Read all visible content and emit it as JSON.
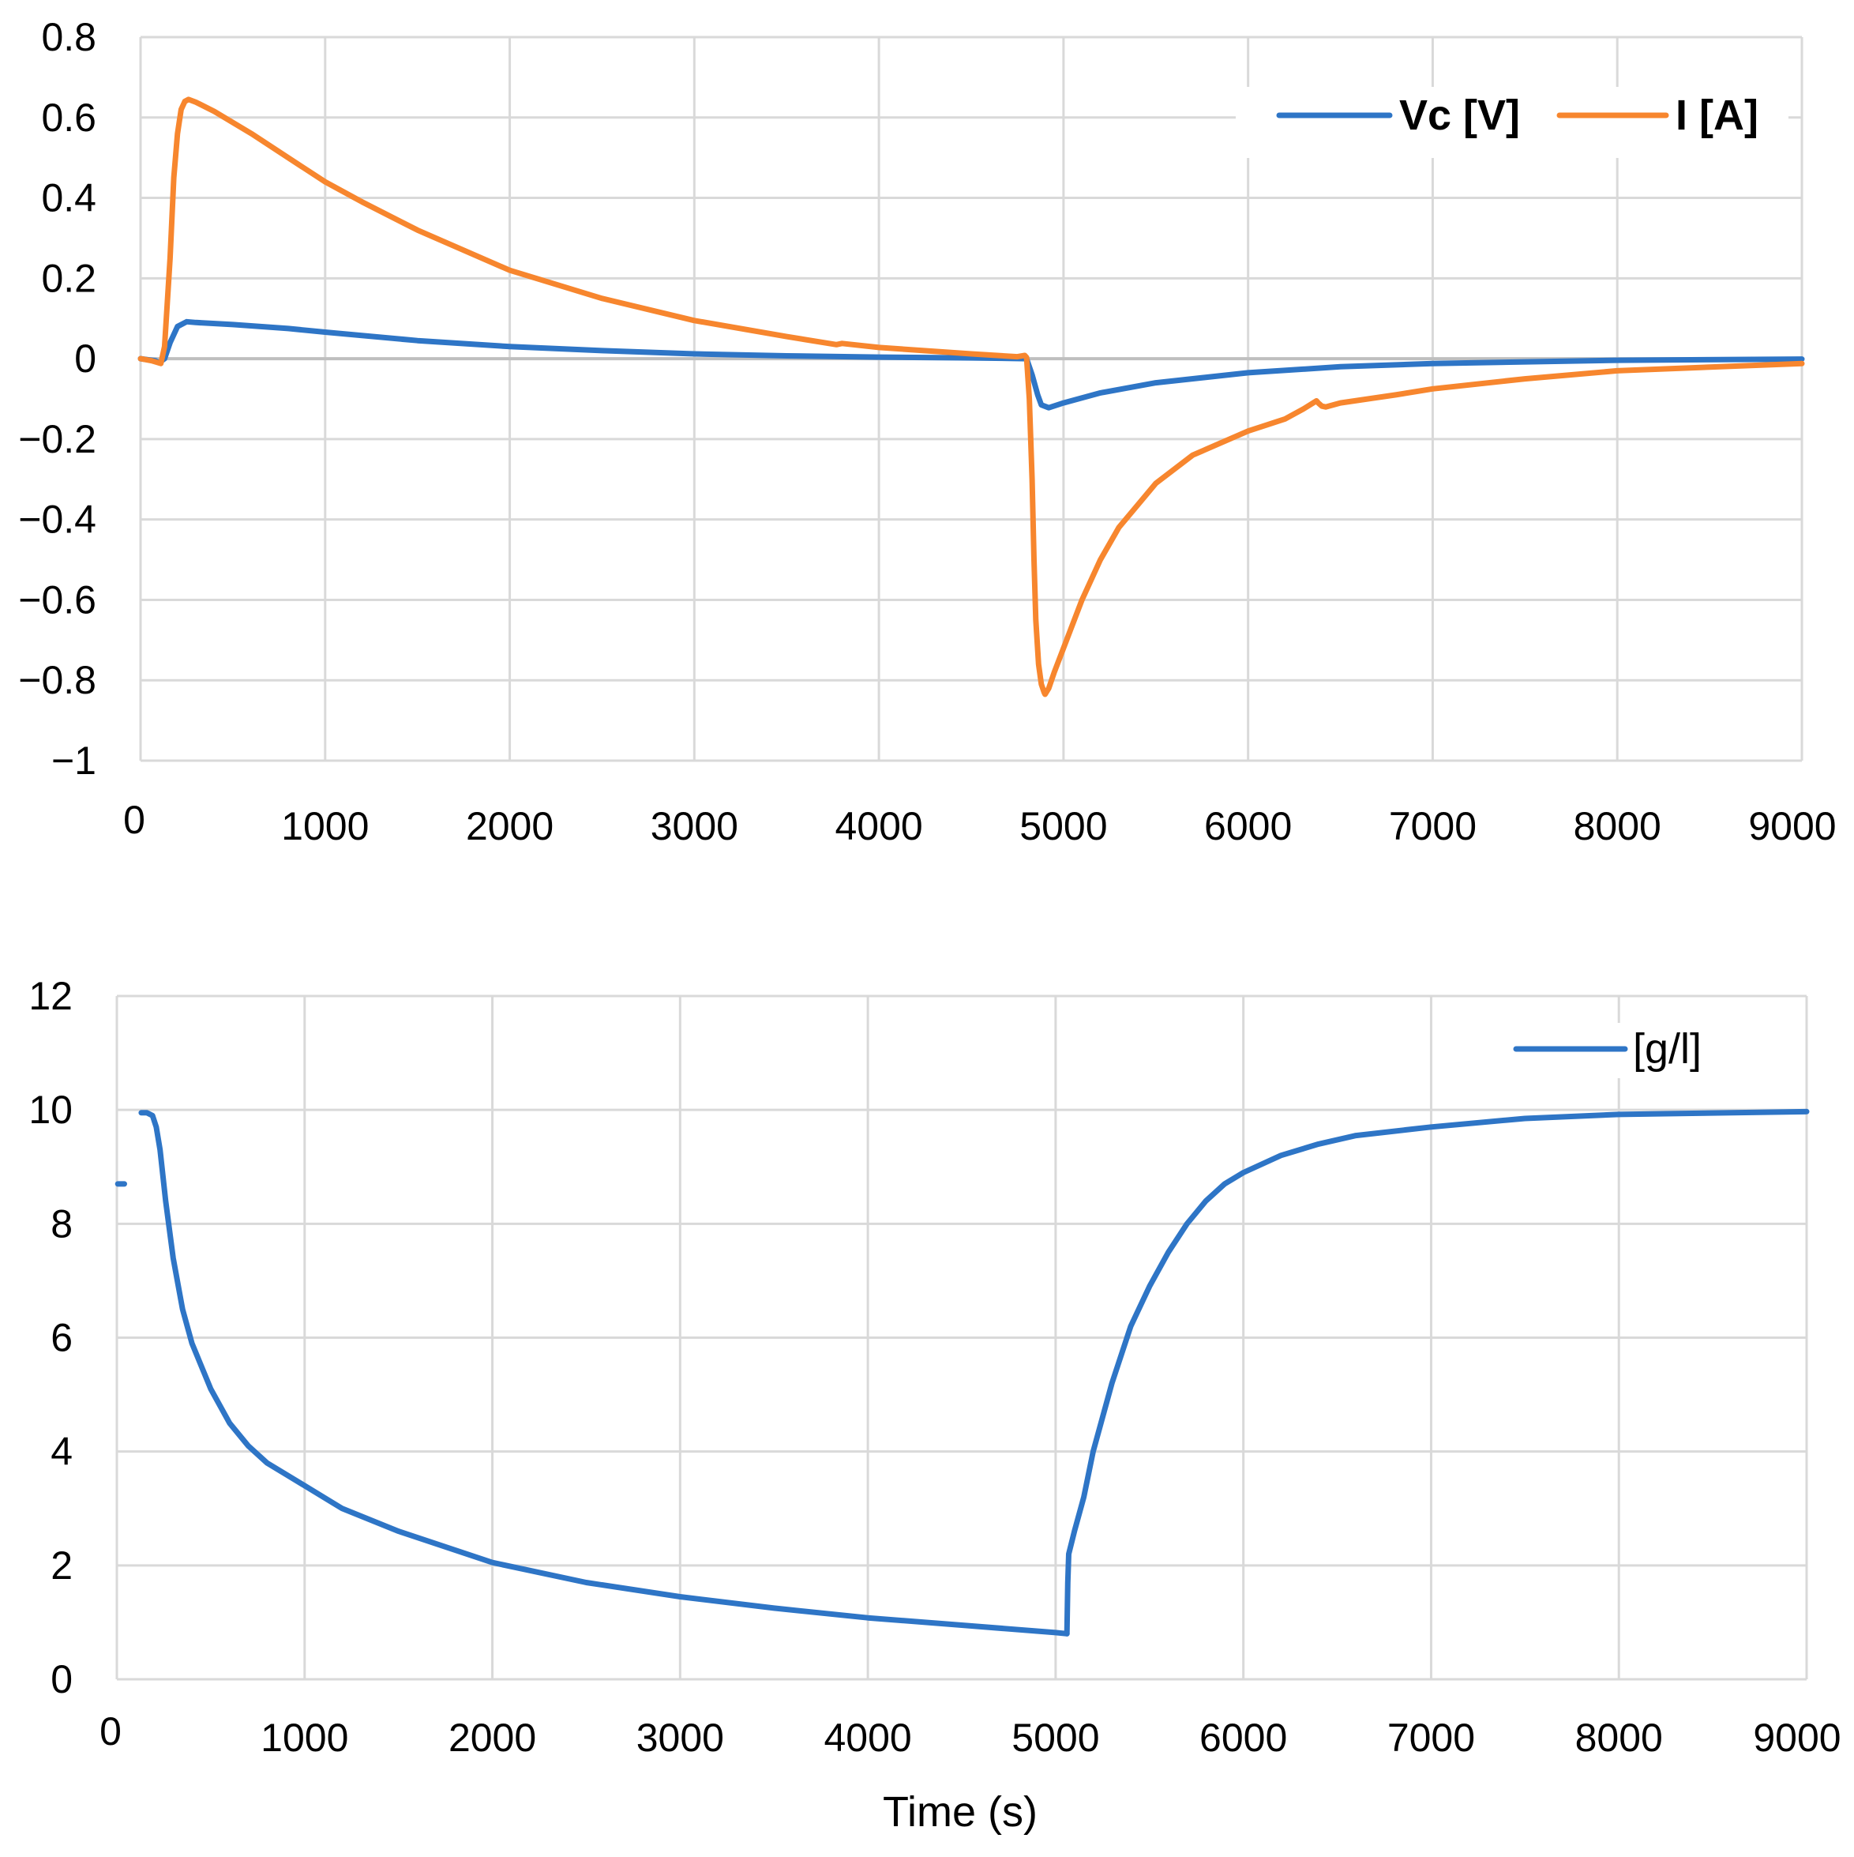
{
  "chart_data": [
    {
      "type": "line",
      "title": "",
      "xlabel": "",
      "ylabel": "",
      "xlim": [
        0,
        9000
      ],
      "ylim": [
        -1,
        0.8
      ],
      "xticks": [
        0,
        1000,
        2000,
        3000,
        4000,
        5000,
        6000,
        7000,
        8000,
        9000
      ],
      "xtick_labels": [
        "0",
        "1000",
        "2000",
        "3000",
        "4000",
        "5000",
        "6000",
        "7000",
        "8000",
        "9000"
      ],
      "yticks": [
        0.8,
        0.6,
        0.4,
        0.2,
        0,
        -0.2,
        -0.4,
        -0.6,
        -0.8,
        -1
      ],
      "ytick_labels": [
        "0.8",
        "0.6",
        "0.4",
        "0.2",
        "0",
        "−0.2",
        "−0.4",
        "−0.6",
        "−0.8",
        "−1"
      ],
      "grid": true,
      "legend_position": "top-right",
      "series": [
        {
          "name": "Vc [V]",
          "color": "#2E75C6",
          "x": [
            0,
            80,
            100,
            130,
            160,
            200,
            250,
            300,
            500,
            800,
            1000,
            1500,
            2000,
            2500,
            3000,
            3500,
            4000,
            4500,
            4800,
            4830,
            4860,
            4880,
            4920,
            5000,
            5200,
            5500,
            6000,
            6500,
            7000,
            8000,
            9000
          ],
          "y": [
            0,
            -0.005,
            -0.01,
            0,
            0.04,
            0.08,
            0.092,
            0.09,
            0.085,
            0.075,
            0.066,
            0.045,
            0.03,
            0.02,
            0.012,
            0.007,
            0.004,
            0.002,
            0.0,
            -0.04,
            -0.09,
            -0.115,
            -0.122,
            -0.11,
            -0.085,
            -0.06,
            -0.035,
            -0.02,
            -0.012,
            -0.004,
            -0.001
          ]
        },
        {
          "name": "I [A]",
          "color": "#F7862E",
          "x": [
            0,
            60,
            110,
            130,
            160,
            180,
            200,
            220,
            240,
            260,
            300,
            400,
            600,
            800,
            1000,
            1200,
            1500,
            2000,
            2500,
            3000,
            3500,
            3770,
            3800,
            4000,
            4500,
            4750,
            4790,
            4800,
            4815,
            4830,
            4840,
            4850,
            4865,
            4880,
            4895,
            4900,
            4920,
            4950,
            5000,
            5100,
            5200,
            5300,
            5500,
            5700,
            6000,
            6200,
            6300,
            6370,
            6380,
            6400,
            6420,
            6500,
            6800,
            7000,
            7500,
            8000,
            9000
          ],
          "y": [
            0,
            -0.005,
            -0.012,
            0.03,
            0.25,
            0.45,
            0.56,
            0.62,
            0.64,
            0.645,
            0.638,
            0.615,
            0.56,
            0.5,
            0.44,
            0.39,
            0.32,
            0.22,
            0.15,
            0.095,
            0.055,
            0.035,
            0.038,
            0.028,
            0.012,
            0.005,
            0.008,
            0.003,
            -0.1,
            -0.3,
            -0.5,
            -0.65,
            -0.76,
            -0.81,
            -0.83,
            -0.835,
            -0.82,
            -0.78,
            -0.72,
            -0.6,
            -0.5,
            -0.42,
            -0.31,
            -0.24,
            -0.18,
            -0.15,
            -0.125,
            -0.105,
            -0.11,
            -0.118,
            -0.12,
            -0.11,
            -0.09,
            -0.075,
            -0.05,
            -0.03,
            -0.012
          ]
        }
      ]
    },
    {
      "type": "line",
      "title": "",
      "xlabel": "Time (s)",
      "ylabel": "",
      "xlim": [
        0,
        9000
      ],
      "ylim": [
        0,
        12
      ],
      "xticks": [
        0,
        1000,
        2000,
        3000,
        4000,
        5000,
        6000,
        7000,
        8000,
        9000
      ],
      "xtick_labels": [
        "0",
        "1000",
        "2000",
        "3000",
        "4000",
        "5000",
        "6000",
        "7000",
        "8000",
        "9000"
      ],
      "yticks": [
        12,
        10,
        8,
        6,
        4,
        2,
        0
      ],
      "ytick_labels": [
        "12",
        "10",
        "8",
        "6",
        "4",
        "2",
        "0"
      ],
      "grid": true,
      "legend_position": "top-right",
      "series": [
        {
          "name": "[g/l]",
          "color": "#2E75C6",
          "segments": [
            {
              "x": [
                5,
                40
              ],
              "y": [
                8.7,
                8.7
              ]
            },
            {
              "x": [
                130,
                160,
                190,
                210,
                230,
                260,
                300,
                350,
                400,
                500,
                600,
                700,
                800,
                900,
                1000,
                1200,
                1500,
                2000,
                2500,
                3000,
                3500,
                4000,
                4500,
                5000,
                5060
              ],
              "y": [
                9.95,
                9.95,
                9.9,
                9.7,
                9.3,
                8.4,
                7.4,
                6.5,
                5.9,
                5.1,
                4.5,
                4.1,
                3.8,
                3.6,
                3.4,
                3.0,
                2.6,
                2.05,
                1.7,
                1.45,
                1.25,
                1.08,
                0.95,
                0.82,
                0.8
              ]
            },
            {
              "x": [
                5060,
                5065,
                5070,
                5100,
                5150,
                5200,
                5300,
                5400,
                5500,
                5600,
                5700,
                5800,
                5900,
                6000,
                6200,
                6400,
                6600,
                7000,
                7500,
                8000,
                9000
              ],
              "y": [
                0.8,
                1.7,
                2.2,
                2.6,
                3.2,
                4.0,
                5.2,
                6.2,
                6.9,
                7.5,
                8.0,
                8.4,
                8.7,
                8.9,
                9.2,
                9.4,
                9.55,
                9.7,
                9.85,
                9.92,
                9.97
              ]
            }
          ]
        }
      ]
    }
  ]
}
